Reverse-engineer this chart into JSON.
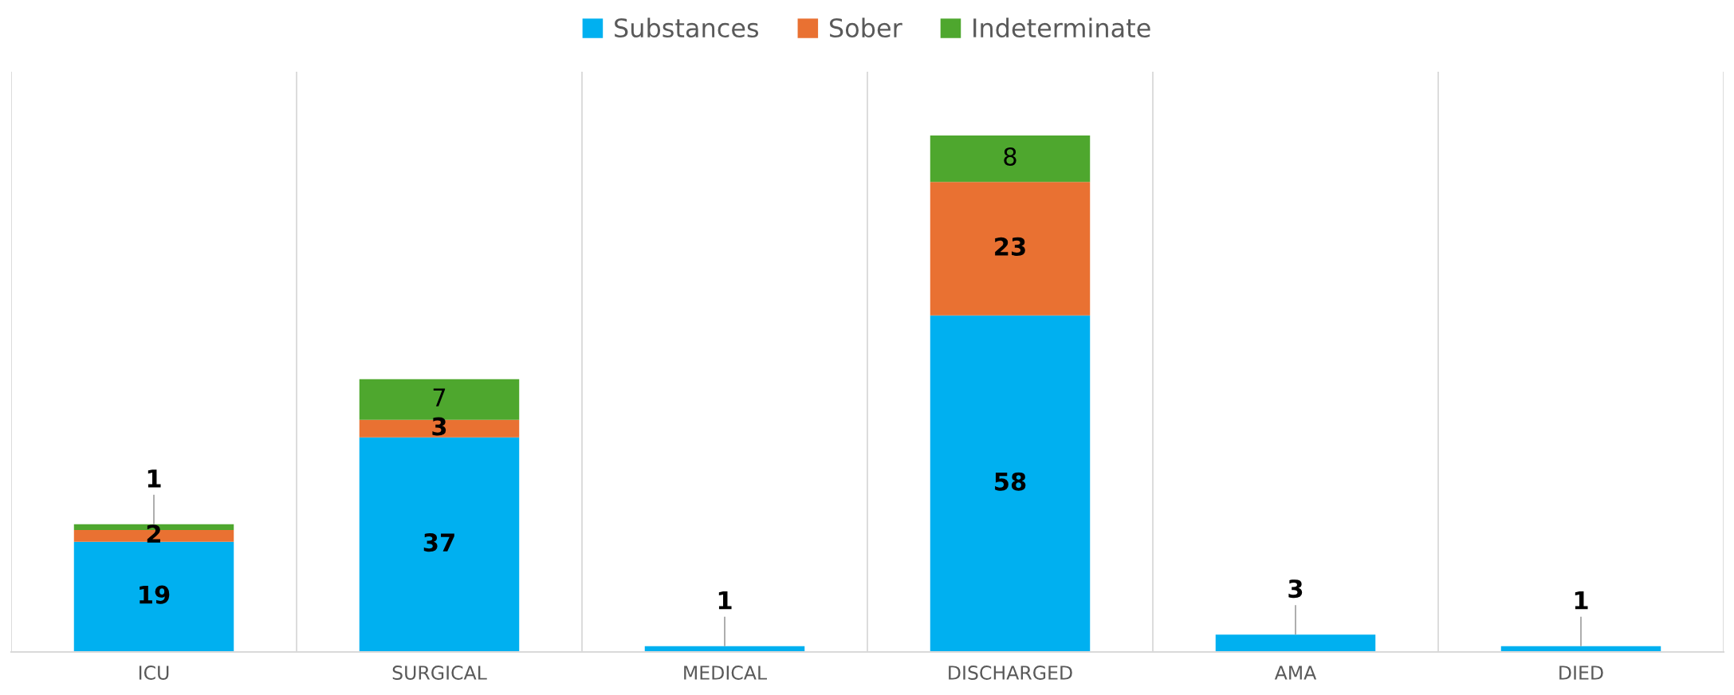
{
  "chart_data": {
    "type": "bar",
    "stacked": true,
    "categories": [
      "ICU",
      "SURGICAL",
      "MEDICAL",
      "DISCHARGED",
      "AMA",
      "DIED"
    ],
    "series": [
      {
        "name": "Substances",
        "color": "#00b0f0",
        "values": [
          19,
          37,
          1,
          58,
          3,
          1
        ]
      },
      {
        "name": "Sober",
        "color": "#e97132",
        "values": [
          2,
          3,
          null,
          23,
          null,
          null
        ]
      },
      {
        "name": "Indeterminate",
        "color": "#4ea72e",
        "values": [
          1,
          7,
          null,
          8,
          null,
          null
        ]
      }
    ],
    "ylim": [
      0,
      100
    ],
    "tick_labels": "x",
    "grid": "x",
    "legend": "top",
    "data_labels": true
  }
}
